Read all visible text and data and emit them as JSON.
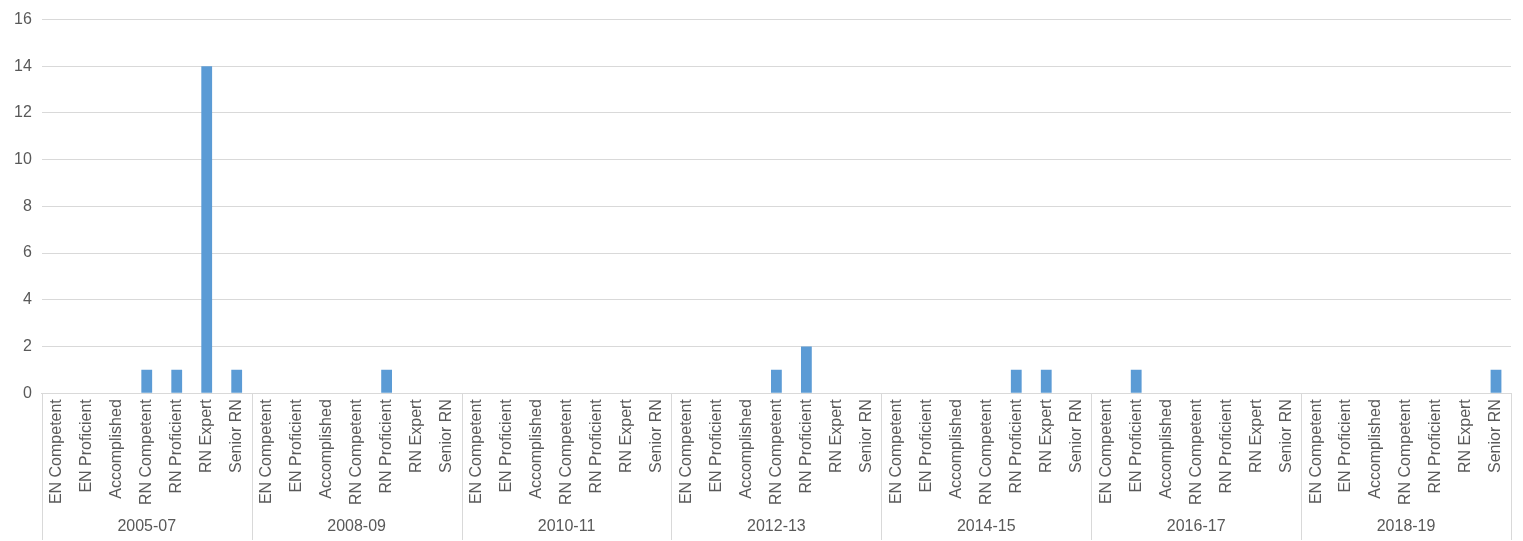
{
  "chart_data": {
    "type": "bar",
    "categories": [
      "EN Competent",
      "EN Proficient",
      "Accomplished",
      "RN Competent",
      "RN Proficient",
      "RN Expert",
      "Senior RN",
      "EN Competent",
      "EN Proficient",
      "Accomplished",
      "RN Competent",
      "RN Proficient",
      "RN Expert",
      "Senior RN",
      "EN Competent",
      "EN Proficient",
      "Accomplished",
      "RN Competent",
      "RN Proficient",
      "RN Expert",
      "Senior RN",
      "EN Competent",
      "EN Proficient",
      "Accomplished",
      "RN Competent",
      "RN Proficient",
      "RN Expert",
      "Senior RN",
      "EN Competent",
      "EN Proficient",
      "Accomplished",
      "RN Competent",
      "RN Proficient",
      "RN Expert",
      "Senior RN",
      "EN Competent",
      "EN Proficient",
      "Accomplished",
      "RN Competent",
      "RN Proficient",
      "RN Expert",
      "Senior RN",
      "EN Competent",
      "EN Proficient",
      "Accomplished",
      "RN Competent",
      "RN Proficient",
      "RN Expert",
      "Senior RN"
    ],
    "values": [
      0,
      0,
      0,
      1,
      1,
      14,
      1,
      0,
      0,
      0,
      0,
      1,
      0,
      0,
      0,
      0,
      0,
      0,
      0,
      0,
      0,
      0,
      0,
      0,
      1,
      2,
      0,
      0,
      0,
      0,
      0,
      0,
      1,
      1,
      0,
      0,
      1,
      0,
      0,
      0,
      0,
      0,
      0,
      0,
      0,
      0,
      0,
      0,
      1
    ],
    "color": "#5b9bd5",
    "ylim": [
      0,
      16
    ],
    "yticks": [
      0,
      2,
      4,
      6,
      8,
      10,
      12,
      14,
      16
    ],
    "grid": "y",
    "annotations": [
      "2005-07",
      "2008-09",
      "2010-11",
      "2012-13",
      "2014-15",
      "2016-17",
      "2018-19"
    ]
  }
}
